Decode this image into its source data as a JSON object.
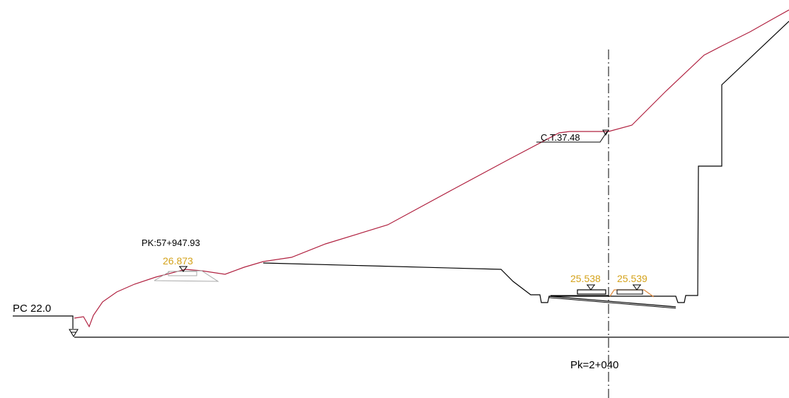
{
  "labels": {
    "reference_level": "PC 22.0",
    "pk_point": "PK:57+947.93",
    "level_left": "26.873",
    "ct_level": "C.T.37.48",
    "level_mid": "25.538",
    "level_right": "25.539",
    "station": "Pk=2+040"
  },
  "colors": {
    "terrain": "#b0203f",
    "section": "#000000",
    "level_text": "#d4a21a",
    "pad": "#e08a3c",
    "ghost_pad": "#a8a8a8"
  }
}
